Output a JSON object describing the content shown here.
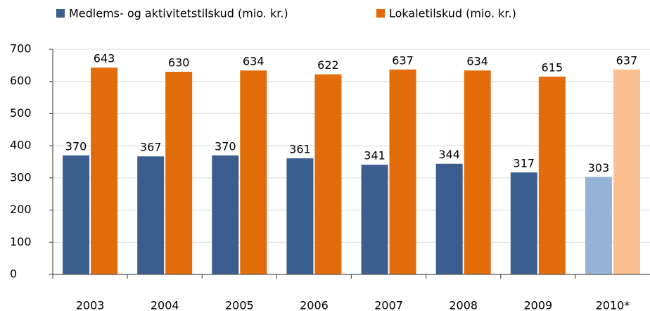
{
  "chart_data": {
    "type": "bar",
    "categories": [
      "2003",
      "2004",
      "2005",
      "2006",
      "2007",
      "2008",
      "2009",
      "2010*"
    ],
    "series": [
      {
        "name": "Medlems- og aktivitetstilskud  (mio. kr.)",
        "color": "#3a5f8f",
        "colors": [
          "#3a5f8f",
          "#3a5f8f",
          "#3a5f8f",
          "#3a5f8f",
          "#3a5f8f",
          "#3a5f8f",
          "#3a5f8f",
          "#95b3d7"
        ],
        "values": [
          370,
          367,
          370,
          361,
          341,
          344,
          317,
          303
        ]
      },
      {
        "name": "Lokaletilskud  (mio. kr.)",
        "color": "#e36c0a",
        "colors": [
          "#e36c0a",
          "#e36c0a",
          "#e36c0a",
          "#e36c0a",
          "#e36c0a",
          "#e36c0a",
          "#e36c0a",
          "#fac090"
        ],
        "values": [
          643,
          630,
          634,
          622,
          637,
          634,
          615,
          637
        ]
      }
    ],
    "ylim": [
      0,
      700
    ],
    "yticks": [
      0,
      100,
      200,
      300,
      400,
      500,
      600,
      700
    ],
    "grid": true,
    "legend": "top"
  }
}
